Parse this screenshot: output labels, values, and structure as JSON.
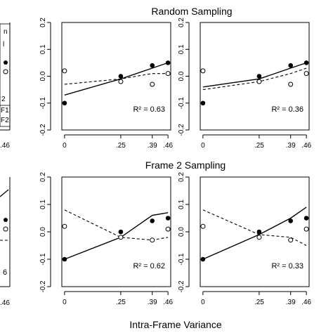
{
  "figure": {
    "section_titles": [
      "Random Sampling",
      "Frame 2 Sampling"
    ],
    "xlabel": "Intra-Frame Variance"
  },
  "chart_data": [
    {
      "type": "scatter",
      "panel": "random-sampling-middle",
      "x_ticks": [
        "0",
        ".25",
        ".39",
        ".46"
      ],
      "y_ticks": [
        "-0.2",
        "-0.1",
        "0.0",
        "0.1",
        "0.2"
      ],
      "xlim": [
        0,
        0.46
      ],
      "ylim": [
        -0.2,
        0.2
      ],
      "x": [
        0,
        0.25,
        0.39,
        0.46
      ],
      "filled_points": [
        -0.1,
        0.0,
        0.04,
        0.05
      ],
      "open_points": [
        0.02,
        -0.02,
        -0.03,
        0.01
      ],
      "solid_line": [
        -0.07,
        -0.01,
        0.03,
        0.05
      ],
      "dashed_line": [
        -0.03,
        -0.01,
        0.01,
        0.01
      ],
      "annotation": "R² = 0.63"
    },
    {
      "type": "scatter",
      "panel": "random-sampling-right",
      "x_ticks": [
        "0",
        ".25",
        ".39",
        ".46"
      ],
      "y_ticks": [
        "-0.2",
        "-0.1",
        "0.0",
        "0.1",
        "0.2"
      ],
      "xlim": [
        0,
        0.46
      ],
      "ylim": [
        -0.2,
        0.2
      ],
      "x": [
        0,
        0.25,
        0.39,
        0.46
      ],
      "filled_points": [
        -0.1,
        0.0,
        0.04,
        0.05
      ],
      "open_points": [
        0.02,
        -0.02,
        -0.03,
        0.01
      ],
      "solid_line": [
        -0.04,
        -0.01,
        0.03,
        0.05
      ],
      "dashed_line": [
        -0.05,
        -0.02,
        0.01,
        0.03
      ],
      "annotation": "R² = 0.36"
    },
    {
      "type": "scatter",
      "panel": "frame2-sampling-middle",
      "x_ticks": [
        "0",
        ".25",
        ".39",
        ".46"
      ],
      "y_ticks": [
        "-0.2",
        "-0.1",
        "0.0",
        "0.1",
        "0.2"
      ],
      "xlim": [
        0,
        0.46
      ],
      "ylim": [
        -0.2,
        0.2
      ],
      "x": [
        0,
        0.25,
        0.39,
        0.46
      ],
      "filled_points": [
        -0.1,
        0.0,
        0.04,
        0.05
      ],
      "open_points": [
        0.02,
        -0.02,
        -0.03,
        0.01
      ],
      "solid_line": [
        -0.1,
        -0.02,
        0.06,
        0.07
      ],
      "dashed_line": [
        0.08,
        -0.02,
        -0.03,
        -0.02
      ],
      "annotation": "R² = 0.62"
    },
    {
      "type": "scatter",
      "panel": "frame2-sampling-right",
      "x_ticks": [
        "0",
        ".25",
        ".39",
        ".46"
      ],
      "y_ticks": [
        "-0.2",
        "-0.1",
        "0.0",
        "0.1",
        "0.2"
      ],
      "xlim": [
        0,
        0.46
      ],
      "ylim": [
        -0.2,
        0.2
      ],
      "x": [
        0,
        0.25,
        0.39,
        0.46
      ],
      "filled_points": [
        -0.1,
        0.0,
        0.04,
        0.05
      ],
      "open_points": [
        0.02,
        -0.02,
        -0.03,
        0.01
      ],
      "solid_line": [
        -0.1,
        -0.01,
        0.05,
        0.09
      ],
      "dashed_line": [
        0.08,
        -0.01,
        -0.02,
        -0.05
      ],
      "annotation": "R² = 0.33"
    }
  ],
  "left_partial": {
    "top_x_tick": ".46",
    "bottom_x_tick": ".46",
    "top_fragments": [
      "n",
      "l",
      "2",
      "F1",
      "F2"
    ],
    "bottom_fragment": "6"
  }
}
